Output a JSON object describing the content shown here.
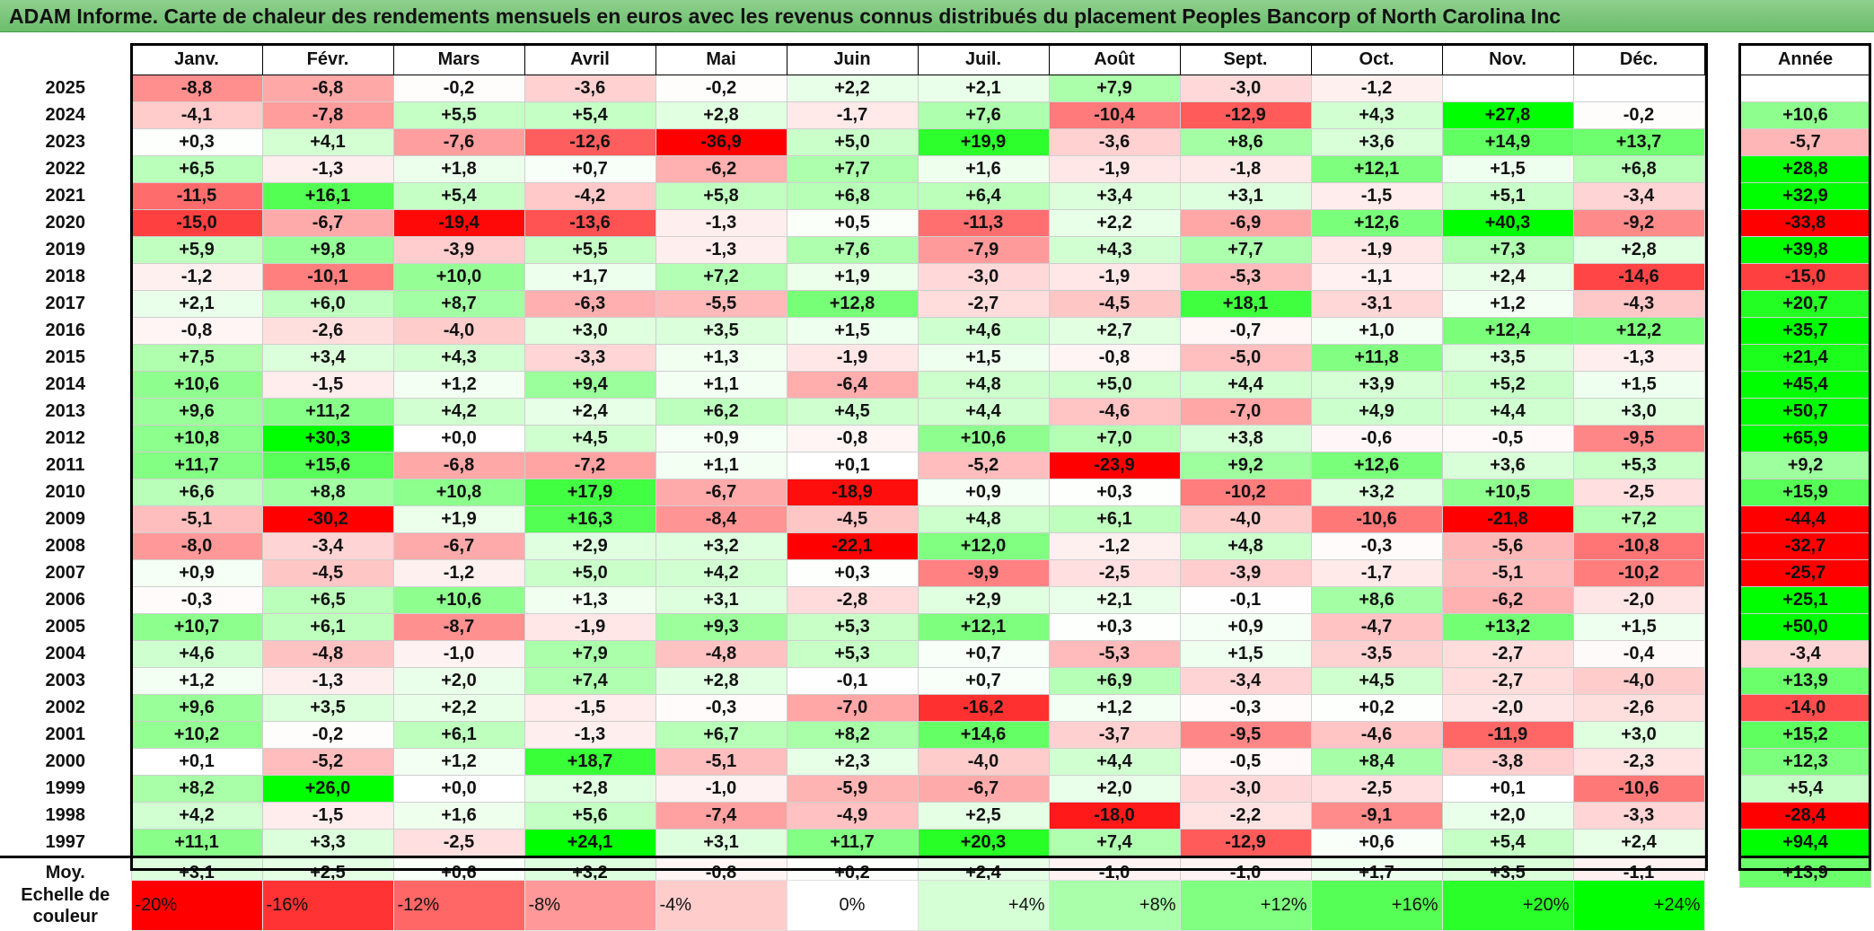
{
  "title": "ADAM Informe. Carte de chaleur des rendements mensuels en euros avec les revenus connus distribués du placement Peoples Bancorp of North Carolina Inc",
  "annual_header": "Année",
  "average_label": "Moy.",
  "scale_label": "Echelle de couleur",
  "scale_steps": [
    "-20%",
    "-16%",
    "-12%",
    "-8%",
    "-4%",
    "0%",
    "+4%",
    "+8%",
    "+12%",
    "+16%",
    "+20%",
    "+24%"
  ],
  "chart_data": {
    "type": "heatmap",
    "columns": [
      "Janv.",
      "Févr.",
      "Mars",
      "Avril",
      "Mai",
      "Juin",
      "Juil.",
      "Août",
      "Sept.",
      "Oct.",
      "Nov.",
      "Déc."
    ],
    "rows": [
      {
        "year": "2025",
        "values": [
          "-8,8",
          "-6,8",
          "-0,2",
          "-3,6",
          "-0,2",
          "+2,2",
          "+2,1",
          "+7,9",
          "-3,0",
          "-1,2",
          "",
          ""
        ],
        "annual": ""
      },
      {
        "year": "2024",
        "values": [
          "-4,1",
          "-7,8",
          "+5,5",
          "+5,4",
          "+2,8",
          "-1,7",
          "+7,6",
          "-10,4",
          "-12,9",
          "+4,3",
          "+27,8",
          "-0,2"
        ],
        "annual": "+10,6"
      },
      {
        "year": "2023",
        "values": [
          "+0,3",
          "+4,1",
          "-7,6",
          "-12,6",
          "-36,9",
          "+5,0",
          "+19,9",
          "-3,6",
          "+8,6",
          "+3,6",
          "+14,9",
          "+13,7"
        ],
        "annual": "-5,7"
      },
      {
        "year": "2022",
        "values": [
          "+6,5",
          "-1,3",
          "+1,8",
          "+0,7",
          "-6,2",
          "+7,7",
          "+1,6",
          "-1,9",
          "-1,8",
          "+12,1",
          "+1,5",
          "+6,8"
        ],
        "annual": "+28,8"
      },
      {
        "year": "2021",
        "values": [
          "-11,5",
          "+16,1",
          "+5,4",
          "-4,2",
          "+5,8",
          "+6,8",
          "+6,4",
          "+3,4",
          "+3,1",
          "-1,5",
          "+5,1",
          "-3,4"
        ],
        "annual": "+32,9"
      },
      {
        "year": "2020",
        "values": [
          "-15,0",
          "-6,7",
          "-19,4",
          "-13,6",
          "-1,3",
          "+0,5",
          "-11,3",
          "+2,2",
          "-6,9",
          "+12,6",
          "+40,3",
          "-9,2"
        ],
        "annual": "-33,8"
      },
      {
        "year": "2019",
        "values": [
          "+5,9",
          "+9,8",
          "-3,9",
          "+5,5",
          "-1,3",
          "+7,6",
          "-7,9",
          "+4,3",
          "+7,7",
          "-1,9",
          "+7,3",
          "+2,8"
        ],
        "annual": "+39,8"
      },
      {
        "year": "2018",
        "values": [
          "-1,2",
          "-10,1",
          "+10,0",
          "+1,7",
          "+7,2",
          "+1,9",
          "-3,0",
          "-1,9",
          "-5,3",
          "-1,1",
          "+2,4",
          "-14,6"
        ],
        "annual": "-15,0"
      },
      {
        "year": "2017",
        "values": [
          "+2,1",
          "+6,0",
          "+8,7",
          "-6,3",
          "-5,5",
          "+12,8",
          "-2,7",
          "-4,5",
          "+18,1",
          "-3,1",
          "+1,2",
          "-4,3"
        ],
        "annual": "+20,7"
      },
      {
        "year": "2016",
        "values": [
          "-0,8",
          "-2,6",
          "-4,0",
          "+3,0",
          "+3,5",
          "+1,5",
          "+4,6",
          "+2,7",
          "-0,7",
          "+1,0",
          "+12,4",
          "+12,2"
        ],
        "annual": "+35,7"
      },
      {
        "year": "2015",
        "values": [
          "+7,5",
          "+3,4",
          "+4,3",
          "-3,3",
          "+1,3",
          "-1,9",
          "+1,5",
          "-0,8",
          "-5,0",
          "+11,8",
          "+3,5",
          "-1,3"
        ],
        "annual": "+21,4"
      },
      {
        "year": "2014",
        "values": [
          "+10,6",
          "-1,5",
          "+1,2",
          "+9,4",
          "+1,1",
          "-6,4",
          "+4,8",
          "+5,0",
          "+4,4",
          "+3,9",
          "+5,2",
          "+1,5"
        ],
        "annual": "+45,4"
      },
      {
        "year": "2013",
        "values": [
          "+9,6",
          "+11,2",
          "+4,2",
          "+2,4",
          "+6,2",
          "+4,5",
          "+4,4",
          "-4,6",
          "-7,0",
          "+4,9",
          "+4,4",
          "+3,0"
        ],
        "annual": "+50,7"
      },
      {
        "year": "2012",
        "values": [
          "+10,8",
          "+30,3",
          "+0,0",
          "+4,5",
          "+0,9",
          "-0,8",
          "+10,6",
          "+7,0",
          "+3,8",
          "-0,6",
          "-0,5",
          "-9,5"
        ],
        "annual": "+65,9"
      },
      {
        "year": "2011",
        "values": [
          "+11,7",
          "+15,6",
          "-6,8",
          "-7,2",
          "+1,1",
          "+0,1",
          "-5,2",
          "-23,9",
          "+9,2",
          "+12,6",
          "+3,6",
          "+5,3"
        ],
        "annual": "+9,2"
      },
      {
        "year": "2010",
        "values": [
          "+6,6",
          "+8,8",
          "+10,8",
          "+17,9",
          "-6,7",
          "-18,9",
          "+0,9",
          "+0,3",
          "-10,2",
          "+3,2",
          "+10,5",
          "-2,5"
        ],
        "annual": "+15,9"
      },
      {
        "year": "2009",
        "values": [
          "-5,1",
          "-30,2",
          "+1,9",
          "+16,3",
          "-8,4",
          "-4,5",
          "+4,8",
          "+6,1",
          "-4,0",
          "-10,6",
          "-21,8",
          "+7,2"
        ],
        "annual": "-44,4"
      },
      {
        "year": "2008",
        "values": [
          "-8,0",
          "-3,4",
          "-6,7",
          "+2,9",
          "+3,2",
          "-22,1",
          "+12,0",
          "-1,2",
          "+4,8",
          "-0,3",
          "-5,6",
          "-10,8"
        ],
        "annual": "-32,7"
      },
      {
        "year": "2007",
        "values": [
          "+0,9",
          "-4,5",
          "-1,2",
          "+5,0",
          "+4,2",
          "+0,3",
          "-9,9",
          "-2,5",
          "-3,9",
          "-1,7",
          "-5,1",
          "-10,2"
        ],
        "annual": "-25,7"
      },
      {
        "year": "2006",
        "values": [
          "-0,3",
          "+6,5",
          "+10,6",
          "+1,3",
          "+3,1",
          "-2,8",
          "+2,9",
          "+2,1",
          "-0,1",
          "+8,6",
          "-6,2",
          "-2,0"
        ],
        "annual": "+25,1"
      },
      {
        "year": "2005",
        "values": [
          "+10,7",
          "+6,1",
          "-8,7",
          "-1,9",
          "+9,3",
          "+5,3",
          "+12,1",
          "+0,3",
          "+0,9",
          "-4,7",
          "+13,2",
          "+1,5"
        ],
        "annual": "+50,0"
      },
      {
        "year": "2004",
        "values": [
          "+4,6",
          "-4,8",
          "-1,0",
          "+7,9",
          "-4,8",
          "+5,3",
          "+0,7",
          "-5,3",
          "+1,5",
          "-3,5",
          "-2,7",
          "-0,4"
        ],
        "annual": "-3,4"
      },
      {
        "year": "2003",
        "values": [
          "+1,2",
          "-1,3",
          "+2,0",
          "+7,4",
          "+2,8",
          "-0,1",
          "+0,7",
          "+6,9",
          "-3,4",
          "+4,5",
          "-2,7",
          "-4,0"
        ],
        "annual": "+13,9"
      },
      {
        "year": "2002",
        "values": [
          "+9,6",
          "+3,5",
          "+2,2",
          "-1,5",
          "-0,3",
          "-7,0",
          "-16,2",
          "+1,2",
          "-0,3",
          "+0,2",
          "-2,0",
          "-2,6"
        ],
        "annual": "-14,0"
      },
      {
        "year": "2001",
        "values": [
          "+10,2",
          "-0,2",
          "+6,1",
          "-1,3",
          "+6,7",
          "+8,2",
          "+14,6",
          "-3,7",
          "-9,5",
          "-4,6",
          "-11,9",
          "+3,0"
        ],
        "annual": "+15,2"
      },
      {
        "year": "2000",
        "values": [
          "+0,1",
          "-5,2",
          "+1,2",
          "+18,7",
          "-5,1",
          "+2,3",
          "-4,0",
          "+4,4",
          "-0,5",
          "+8,4",
          "-3,8",
          "-2,3"
        ],
        "annual": "+12,3"
      },
      {
        "year": "1999",
        "values": [
          "+8,2",
          "+26,0",
          "+0,0",
          "+2,8",
          "-1,0",
          "-5,9",
          "-6,7",
          "+2,0",
          "-3,0",
          "-2,5",
          "+0,1",
          "-10,6"
        ],
        "annual": "+5,4"
      },
      {
        "year": "1998",
        "values": [
          "+4,2",
          "-1,5",
          "+1,6",
          "+5,6",
          "-7,4",
          "-4,9",
          "+2,5",
          "-18,0",
          "-2,2",
          "-9,1",
          "+2,0",
          "-3,3"
        ],
        "annual": "-28,4"
      },
      {
        "year": "1997",
        "values": [
          "+11,1",
          "+3,3",
          "-2,5",
          "+24,1",
          "+3,1",
          "+11,7",
          "+20,3",
          "+7,4",
          "-12,9",
          "+0,6",
          "+5,4",
          "+2,4"
        ],
        "annual": "+94,4"
      }
    ],
    "averages": [
      "+3,1",
      "+2,5",
      "+0,6",
      "+3,2",
      "-0,8",
      "+0,2",
      "+2,4",
      "-1,0",
      "-1,0",
      "+1,7",
      "+3,5",
      "-1,1"
    ],
    "average_annual": "+13,9",
    "color_scale": {
      "min": -20,
      "max": 24,
      "negative": "#ff0000",
      "neutral": "#ffffff",
      "positive": "#00ff00"
    }
  }
}
